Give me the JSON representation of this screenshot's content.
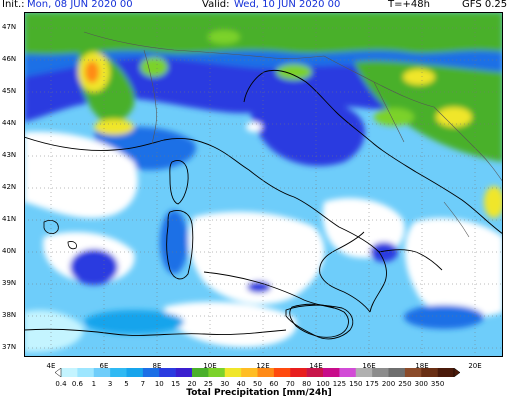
{
  "header": {
    "init_label": "Init.:",
    "init_value": "Mon, 08 JUN 2020  00",
    "valid_label": "Valid:",
    "valid_value": "Wed, 10 JUN 2020  00",
    "step": "T=+48h",
    "model": "GFS 0.25"
  },
  "map": {
    "lat_labels": [
      "47N",
      "46N",
      "45N",
      "44N",
      "43N",
      "42N",
      "41N",
      "40N",
      "39N",
      "38N",
      "37N"
    ],
    "lon_labels": [
      "4E",
      "6E",
      "8E",
      "10E",
      "12E",
      "14E",
      "16E",
      "18E",
      "20E"
    ]
  },
  "colorbar": {
    "title": "Total Precipitation [mm/24h]",
    "levels": [
      "0.4",
      "0.6",
      "1",
      "3",
      "5",
      "7",
      "10",
      "15",
      "20",
      "25",
      "30",
      "40",
      "50",
      "60",
      "70",
      "80",
      "100",
      "125",
      "150",
      "175",
      "200",
      "250",
      "300",
      "350"
    ],
    "colors": [
      "#c4f4ff",
      "#9de6ff",
      "#6ecdfa",
      "#2fb9f3",
      "#17a4ec",
      "#1c6fe6",
      "#2a3be0",
      "#3a1fcf",
      "#4ab02a",
      "#7cd22a",
      "#f0e62a",
      "#ffbd24",
      "#ff8a16",
      "#ff4a0e",
      "#e81e1e",
      "#c8154a",
      "#c80c8a",
      "#d24bd6",
      "#b0b0b0",
      "#8c8c8c",
      "#6e6e6e",
      "#8b4b2a",
      "#6a2f14",
      "#4a1a0a"
    ]
  }
}
